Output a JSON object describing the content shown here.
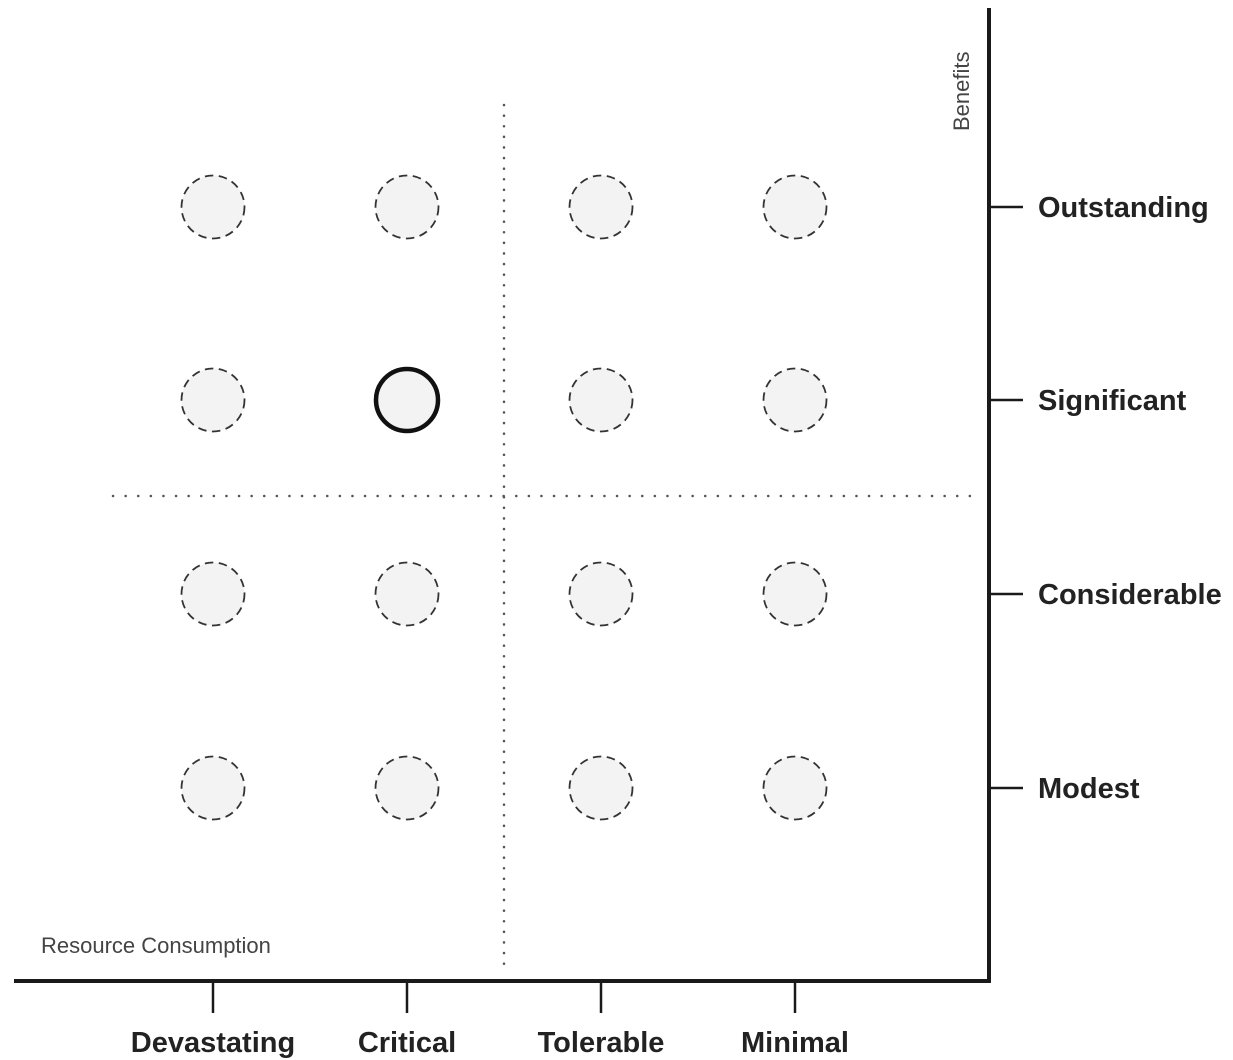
{
  "chart_data": {
    "type": "scatter",
    "title": "",
    "xlabel": "Resource Consumption",
    "ylabel": "Benefits",
    "x_categories": [
      "Devastating",
      "Critical",
      "Tolerable",
      "Minimal"
    ],
    "y_categories": [
      "Outstanding",
      "Significant",
      "Considerable",
      "Modest"
    ],
    "points": [
      {
        "x": "Devastating",
        "y": "Outstanding",
        "selected": false
      },
      {
        "x": "Critical",
        "y": "Outstanding",
        "selected": false
      },
      {
        "x": "Tolerable",
        "y": "Outstanding",
        "selected": false
      },
      {
        "x": "Minimal",
        "y": "Outstanding",
        "selected": false
      },
      {
        "x": "Devastating",
        "y": "Significant",
        "selected": false
      },
      {
        "x": "Critical",
        "y": "Significant",
        "selected": true
      },
      {
        "x": "Tolerable",
        "y": "Significant",
        "selected": false
      },
      {
        "x": "Minimal",
        "y": "Significant",
        "selected": false
      },
      {
        "x": "Devastating",
        "y": "Considerable",
        "selected": false
      },
      {
        "x": "Critical",
        "y": "Considerable",
        "selected": false
      },
      {
        "x": "Tolerable",
        "y": "Considerable",
        "selected": false
      },
      {
        "x": "Minimal",
        "y": "Considerable",
        "selected": false
      },
      {
        "x": "Devastating",
        "y": "Modest",
        "selected": false
      },
      {
        "x": "Critical",
        "y": "Modest",
        "selected": false
      },
      {
        "x": "Tolerable",
        "y": "Modest",
        "selected": false
      },
      {
        "x": "Minimal",
        "y": "Modest",
        "selected": false
      }
    ],
    "quadrant_dividers": "dotted",
    "grid": false
  },
  "colors": {
    "axis": "#1a1a1a",
    "circle_fill": "#f3f3f3",
    "circle_stroke_dashed": "#333333",
    "circle_stroke_selected": "#111111",
    "divider": "#555555",
    "label": "#222222"
  }
}
